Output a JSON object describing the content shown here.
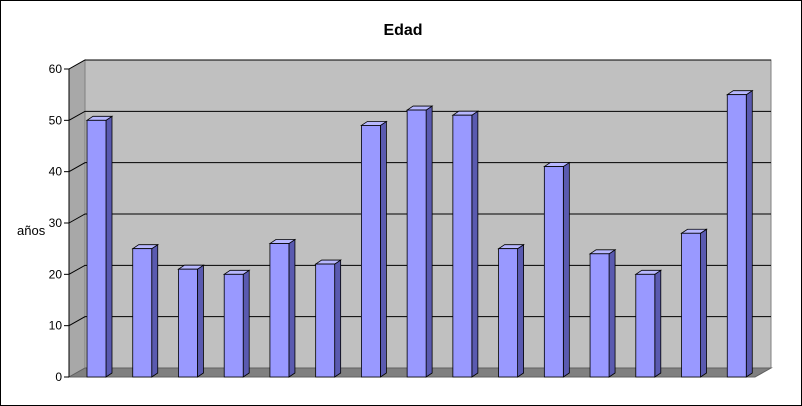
{
  "chart_data": {
    "type": "bar",
    "title": "Edad",
    "ylabel": "años",
    "xlabel": "",
    "ylim": [
      0,
      60
    ],
    "y_ticks": [
      0,
      10,
      20,
      30,
      40,
      50,
      60
    ],
    "values": [
      50,
      25,
      21,
      20,
      26,
      22,
      49,
      52,
      51,
      25,
      41,
      24,
      20,
      28,
      55
    ],
    "grid": true,
    "legend": "none",
    "style": "3d-column",
    "colors": {
      "bar_front": "#9999ff",
      "bar_side": "#5a5ab0",
      "bar_top": "#b8b8ff",
      "wall": "#c0c0c0",
      "floor": "#808080",
      "gridline": "#000000"
    }
  }
}
